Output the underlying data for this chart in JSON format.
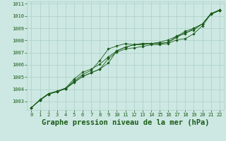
{
  "title": "Graphe pression niveau de la mer (hPa)",
  "background_color": "#cde8e2",
  "grid_color": "#aacfc8",
  "line_color": "#1a5c1a",
  "marker_color": "#1a5c1a",
  "xlim": [
    -0.5,
    22.5
  ],
  "ylim": [
    1002.3,
    1011.2
  ],
  "yticks": [
    1003,
    1004,
    1005,
    1006,
    1007,
    1008,
    1009,
    1010,
    1011
  ],
  "xticks": [
    0,
    1,
    2,
    3,
    4,
    5,
    6,
    7,
    8,
    9,
    10,
    11,
    12,
    13,
    14,
    15,
    16,
    17,
    18,
    19,
    20,
    21,
    22
  ],
  "title_fontsize": 7.5,
  "tick_fontsize": 5.0,
  "series": [
    [
      1002.5,
      1003.1,
      1003.6,
      1003.8,
      1004.05,
      1004.6,
      1005.05,
      1005.35,
      1005.65,
      1006.5,
      1007.05,
      1007.3,
      1007.4,
      1007.5,
      1007.65,
      1007.65,
      1007.75,
      1008.05,
      1008.15,
      1008.55,
      1009.2,
      1010.15,
      1010.45
    ],
    [
      1002.5,
      1003.1,
      1003.6,
      1003.8,
      1004.05,
      1004.7,
      1005.2,
      1005.55,
      1006.35,
      1007.3,
      1007.55,
      1007.75,
      1007.65,
      1007.65,
      1007.75,
      1007.85,
      1008.05,
      1008.35,
      1008.55,
      1009.0,
      1009.35,
      1010.2,
      1010.5
    ],
    [
      1002.5,
      1003.1,
      1003.6,
      1003.8,
      1004.05,
      1004.55,
      1005.05,
      1005.35,
      1005.65,
      1006.15,
      1007.15,
      1007.45,
      1007.65,
      1007.75,
      1007.75,
      1007.75,
      1007.85,
      1008.25,
      1008.65,
      1008.85,
      1009.35,
      1010.15,
      1010.45
    ],
    [
      1002.5,
      1003.15,
      1003.65,
      1003.85,
      1004.1,
      1004.85,
      1005.4,
      1005.65,
      1006.05,
      1006.65,
      1007.15,
      1007.45,
      1007.65,
      1007.75,
      1007.75,
      1007.75,
      1007.85,
      1008.35,
      1008.75,
      1009.0,
      1009.35,
      1010.2,
      1010.5
    ]
  ]
}
